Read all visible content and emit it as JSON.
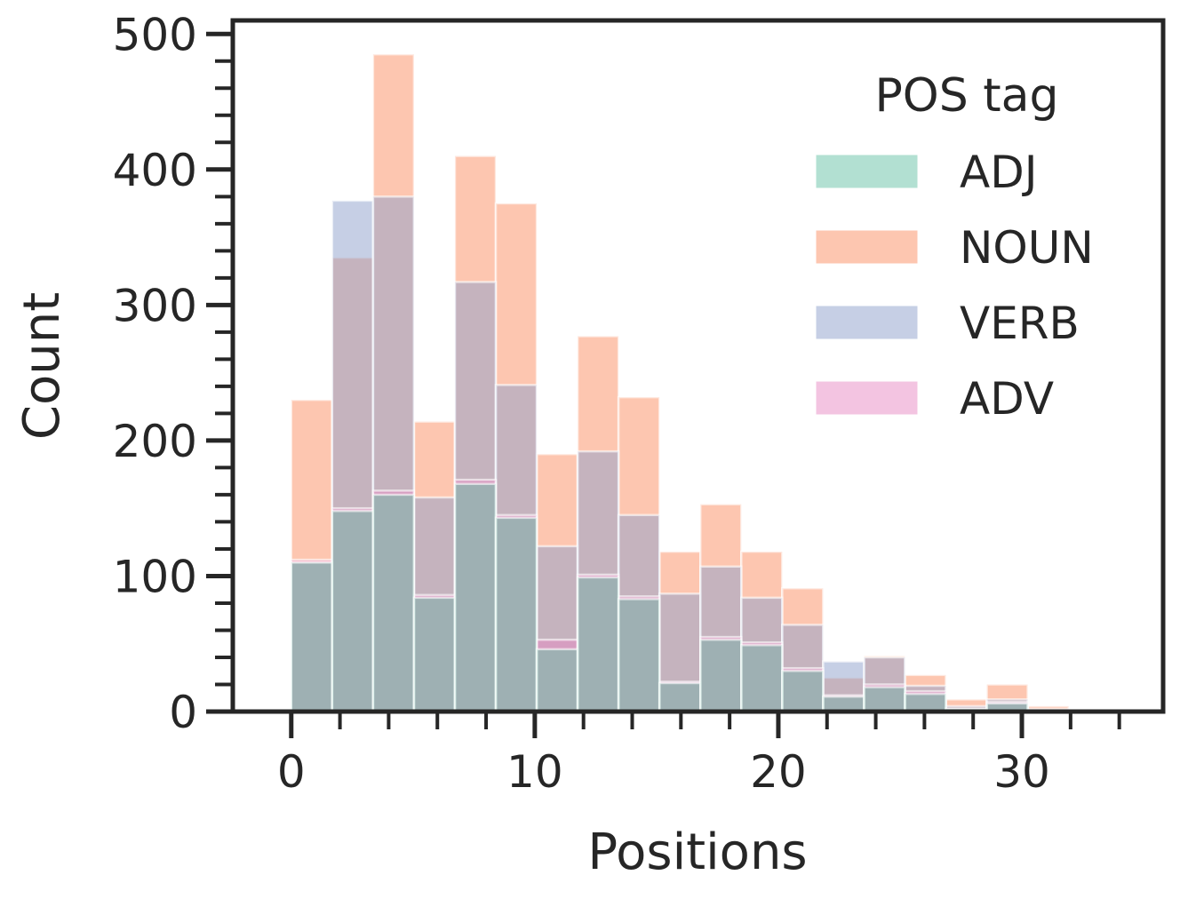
{
  "chart_data": {
    "type": "histogram",
    "xlabel": "Positions",
    "ylabel": "Count",
    "xlim": [
      -2.4,
      35.8
    ],
    "ylim": [
      0,
      510
    ],
    "xticks": [
      0,
      10,
      20,
      30
    ],
    "yticks": [
      0,
      100,
      200,
      300,
      400,
      500
    ],
    "bin_edges": [
      0,
      1.68,
      3.36,
      5.04,
      6.72,
      8.4,
      10.08,
      11.76,
      13.44,
      15.12,
      16.8,
      18.48,
      20.16,
      21.84,
      23.52,
      25.2,
      26.88,
      28.56,
      30.24,
      31.92
    ],
    "legend": {
      "title": "POS tag",
      "location": "upper-right"
    },
    "series": [
      {
        "name": "NOUN",
        "color": "#fc8d62",
        "values": [
          230,
          335,
          485,
          214,
          410,
          375,
          190,
          277,
          232,
          118,
          153,
          118,
          91,
          25,
          41,
          27,
          9,
          20,
          4
        ]
      },
      {
        "name": "VERB",
        "color": "#8da0cb",
        "values": [
          110,
          377,
          380,
          158,
          317,
          241,
          122,
          192,
          145,
          87,
          107,
          84,
          64,
          37,
          40,
          19,
          4,
          9,
          2
        ]
      },
      {
        "name": "ADV",
        "color": "#e78ac3",
        "values": [
          112,
          150,
          163,
          86,
          171,
          145,
          53,
          101,
          85,
          22,
          55,
          51,
          32,
          12,
          20,
          15,
          2,
          7,
          1
        ]
      },
      {
        "name": "ADJ",
        "color": "#66c2a5",
        "values": [
          110,
          148,
          160,
          84,
          168,
          143,
          46,
          99,
          83,
          21,
          53,
          49,
          30,
          11,
          18,
          13,
          2,
          6,
          1
        ]
      }
    ]
  }
}
